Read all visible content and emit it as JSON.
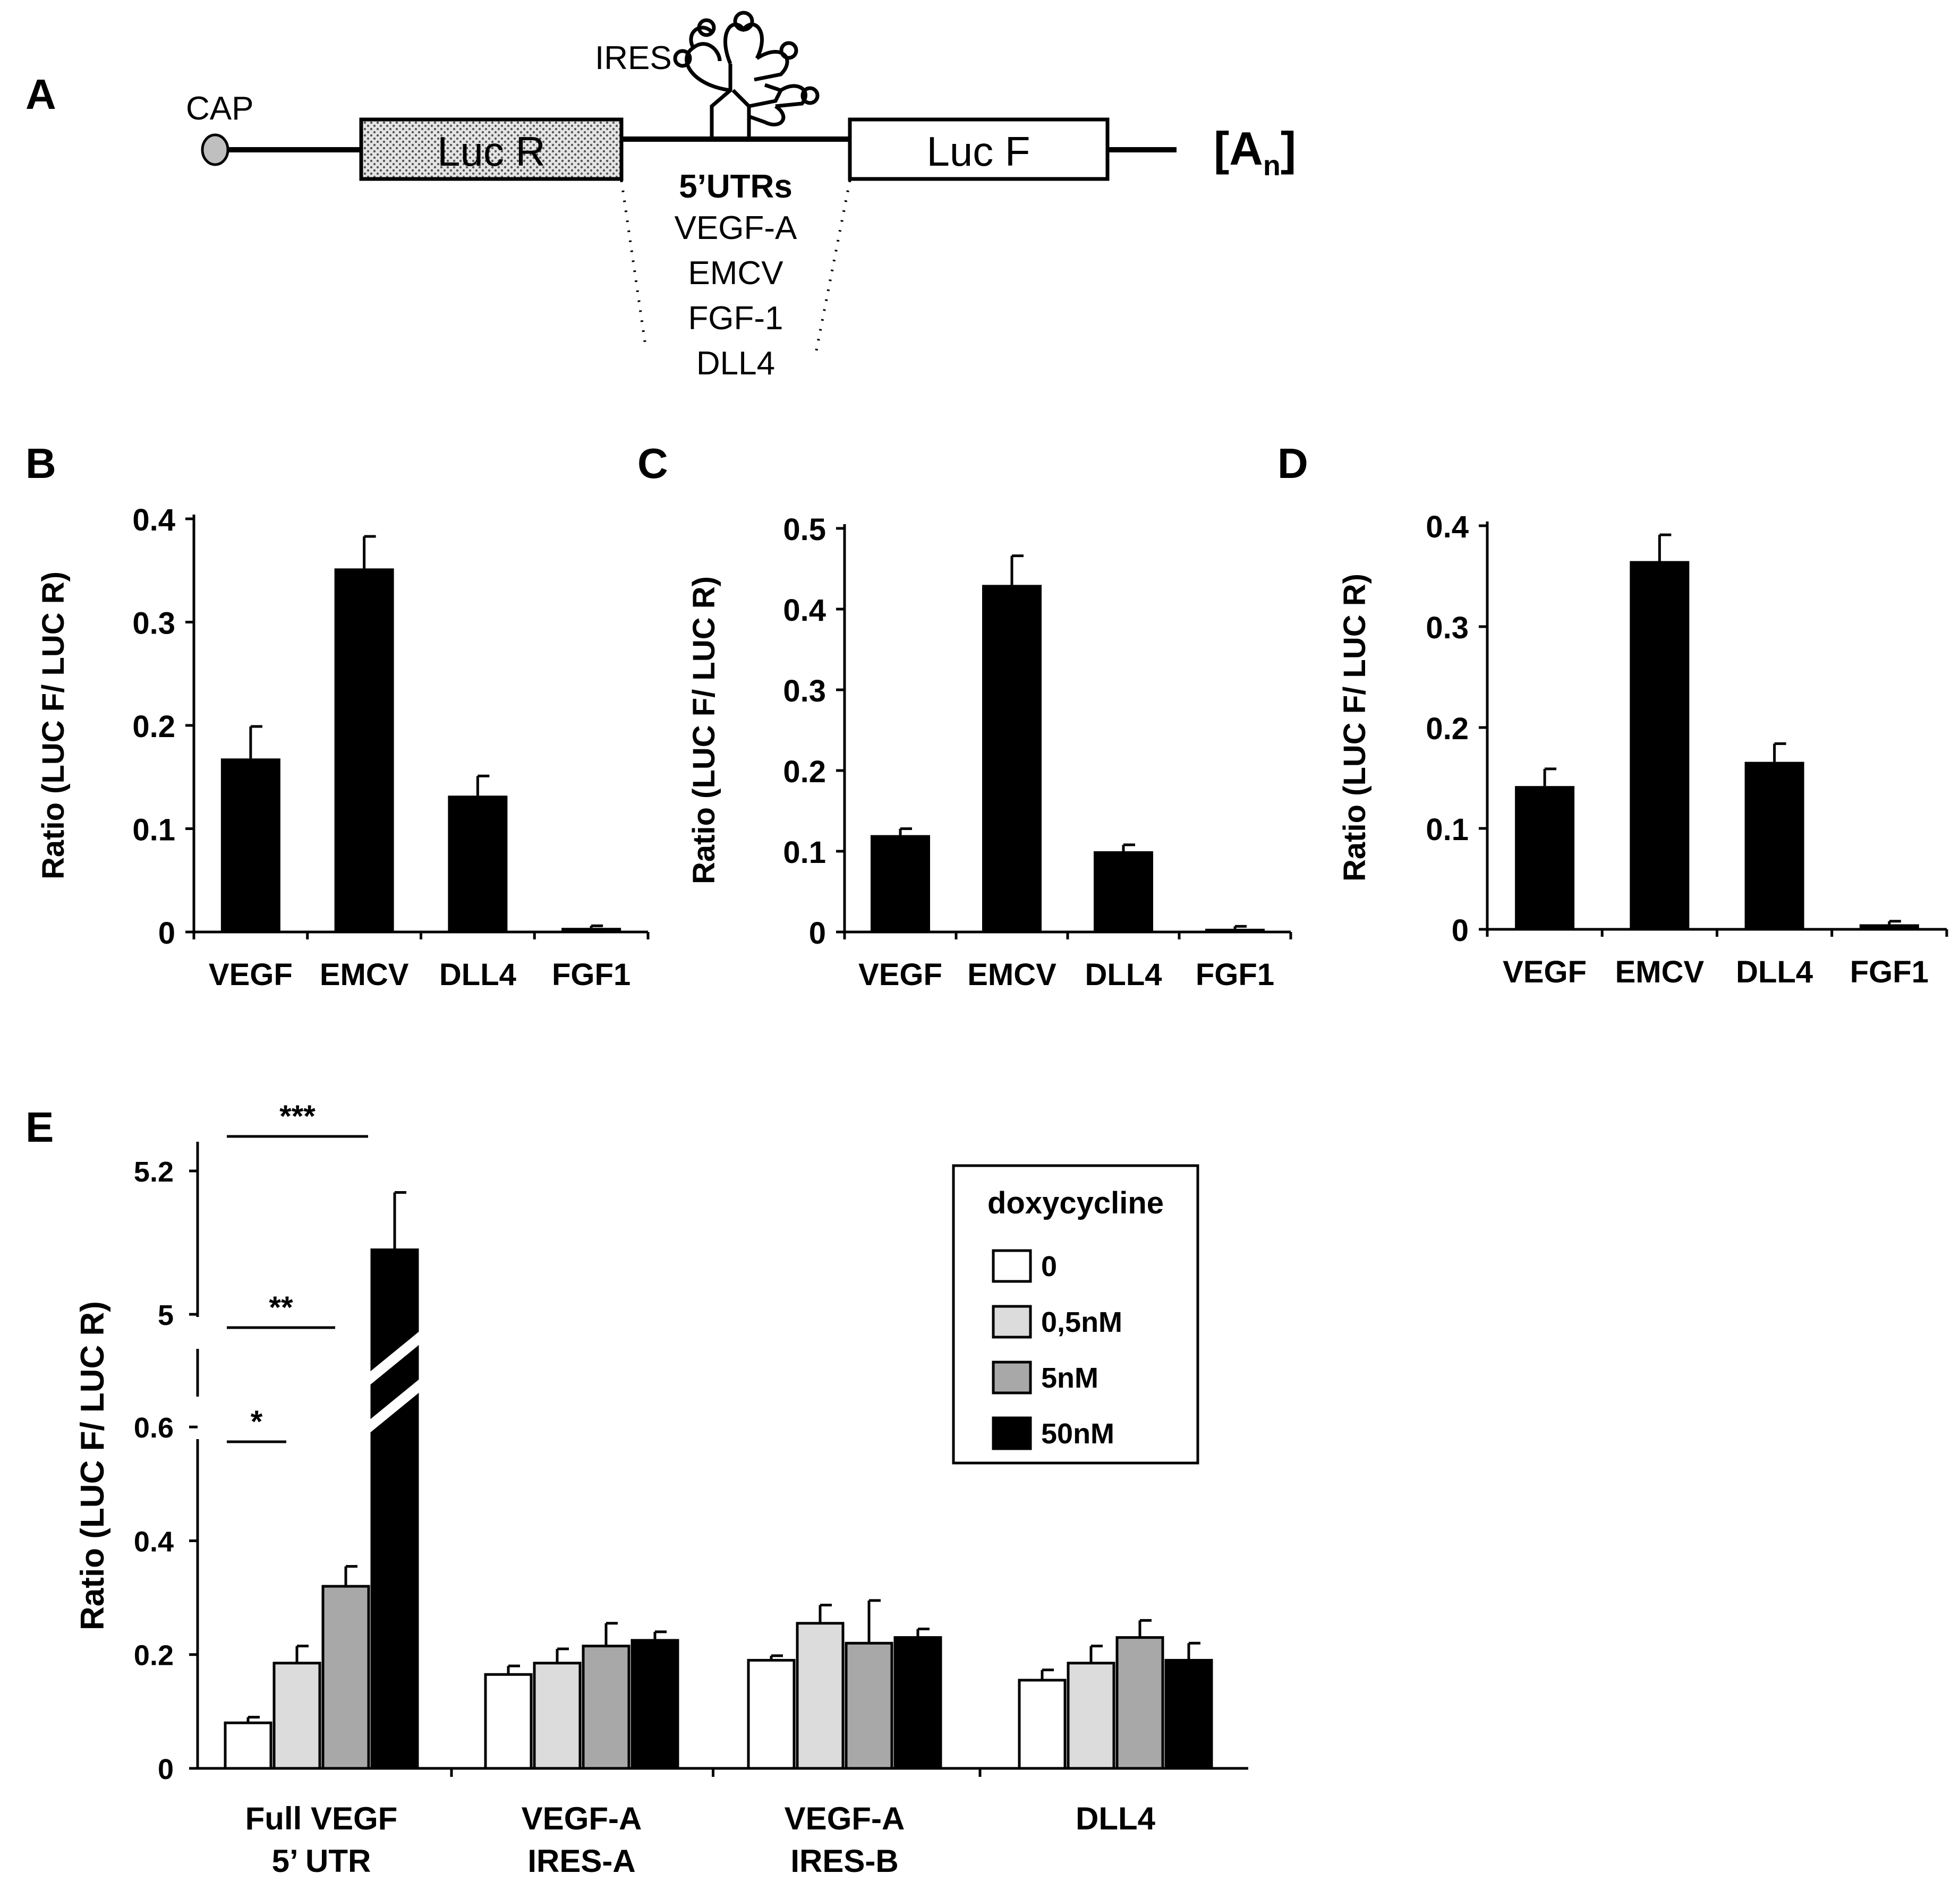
{
  "panel_labels": {
    "a": "A",
    "b": "B",
    "c": "C",
    "d": "D",
    "e": "E"
  },
  "schematic": {
    "cap": "CAP",
    "ires": "IRES",
    "luc_r": "Luc R",
    "luc_f": "Luc F",
    "polya_base": "[A",
    "polya_sub": "n",
    "polya_close": "]",
    "utr_title": "5’UTRs",
    "utr_items": [
      "VEGF-A",
      "EMCV",
      "FGF-1",
      "DLL4"
    ]
  },
  "colors": {
    "black": "#000000",
    "white": "#ffffff",
    "light_grey": "#dcdcdc",
    "mid_grey": "#a8a8a8",
    "box_fill": "#e6e6e6"
  },
  "chart_data": [
    {
      "id": "B",
      "type": "bar",
      "ylabel": "Ratio (LUC F/ LUC R)",
      "categories": [
        "VEGF",
        "EMCV",
        "DLL4",
        "FGF1"
      ],
      "values": [
        0.168,
        0.352,
        0.132,
        0.004
      ],
      "errors": [
        0.031,
        0.031,
        0.019,
        0.002
      ],
      "ylim": [
        0,
        0.4
      ],
      "yticks": [
        0,
        0.1,
        0.2,
        0.3,
        0.4
      ],
      "ytick_labels": [
        "0",
        "0.1",
        "0.2",
        "0.3",
        "0.4"
      ]
    },
    {
      "id": "C",
      "type": "bar",
      "ylabel": "Ratio (LUC F/ LUC R)",
      "categories": [
        "VEGF",
        "EMCV",
        "DLL4",
        "FGF1"
      ],
      "values": [
        0.12,
        0.43,
        0.1,
        0.004
      ],
      "errors": [
        0.008,
        0.036,
        0.008,
        0.003
      ],
      "ylim": [
        0,
        0.5
      ],
      "yticks": [
        0,
        0.1,
        0.2,
        0.3,
        0.4,
        0.5
      ],
      "ytick_labels": [
        "0",
        "0.1",
        "0.2",
        "0.3",
        "0.4",
        "0.5"
      ]
    },
    {
      "id": "D",
      "type": "bar",
      "ylabel": "Ratio (LUC F/ LUC R)",
      "categories": [
        "VEGF",
        "EMCV",
        "DLL4",
        "FGF1"
      ],
      "values": [
        0.142,
        0.365,
        0.166,
        0.005
      ],
      "errors": [
        0.017,
        0.026,
        0.018,
        0.003
      ],
      "ylim": [
        0,
        0.4
      ],
      "yticks": [
        0,
        0.1,
        0.2,
        0.3,
        0.4
      ],
      "ytick_labels": [
        "0",
        "0.1",
        "0.2",
        "0.3",
        "0.4"
      ]
    },
    {
      "id": "E",
      "type": "bar",
      "ylabel": "Ratio (LUC F/ LUC R)",
      "categories": [
        "Full VEGF\n5’ UTR",
        "VEGF-A\nIRES-A",
        "VEGF-A\nIRES-B",
        "DLL4"
      ],
      "legend_title": "doxycycline",
      "legend_position": "top-right",
      "series": [
        {
          "name": "0",
          "color": "#ffffff",
          "values": [
            0.08,
            0.165,
            0.19,
            0.155
          ],
          "errors": [
            0.01,
            0.015,
            0.008,
            0.018
          ]
        },
        {
          "name": "0,5nM",
          "color": "#dcdcdc",
          "values": [
            0.185,
            0.185,
            0.255,
            0.185
          ],
          "errors": [
            0.03,
            0.025,
            0.032,
            0.03
          ]
        },
        {
          "name": "5nM",
          "color": "#a8a8a8",
          "values": [
            0.32,
            0.215,
            0.22,
            0.23
          ],
          "errors": [
            0.035,
            0.04,
            0.075,
            0.03
          ]
        },
        {
          "name": "50nM",
          "color": "#000000",
          "values": [
            5.09,
            0.225,
            0.23,
            0.19
          ],
          "errors": [
            0.08,
            0.015,
            0.015,
            0.03
          ]
        }
      ],
      "axis_break": {
        "lower": [
          0,
          0.7
        ],
        "upper": [
          4.9,
          5.2
        ]
      },
      "yticks": [
        0,
        0.2,
        0.4,
        0.6,
        5,
        5.2
      ],
      "ytick_labels": [
        "0",
        "0.2",
        "0.4",
        "0.6",
        "5",
        "5.2"
      ],
      "significance": [
        {
          "label": "*",
          "from": "0",
          "to": "0,5nM"
        },
        {
          "label": "**",
          "from": "0",
          "to": "5nM"
        },
        {
          "label": "***",
          "from": "0",
          "to": "50nM"
        }
      ]
    }
  ]
}
